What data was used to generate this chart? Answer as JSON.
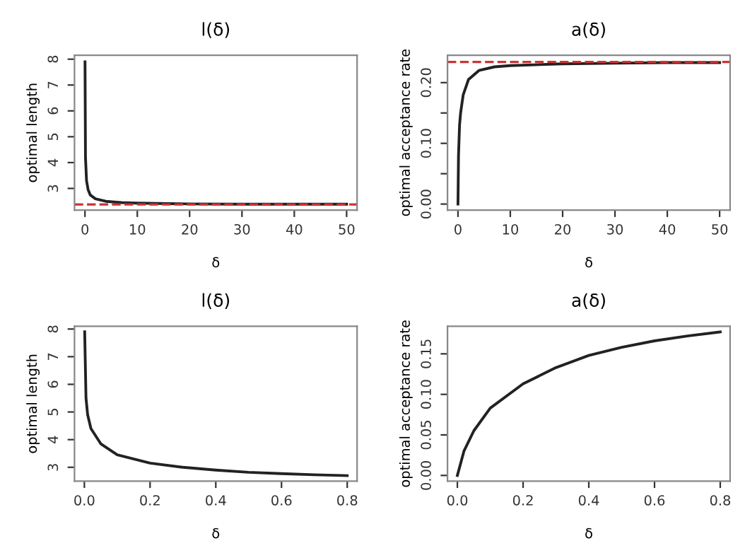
{
  "chart_data": [
    {
      "type": "line",
      "title": "l(δ)",
      "xlabel": "δ",
      "ylabel": "optimal length",
      "x": [
        0.01,
        0.1,
        0.3,
        0.6,
        1,
        2,
        4,
        7,
        10,
        20,
        30,
        40,
        50
      ],
      "series": [
        {
          "color": "#222222",
          "values": [
            7.9,
            4.2,
            3.3,
            2.95,
            2.75,
            2.6,
            2.5,
            2.45,
            2.43,
            2.4,
            2.39,
            2.39,
            2.39
          ]
        }
      ],
      "xlim": [
        -2,
        52
      ],
      "ylim": [
        2.16,
        8.15
      ],
      "xticks": [
        0,
        10,
        20,
        30,
        40,
        50
      ],
      "yticks": [
        3,
        4,
        5,
        6,
        7,
        8
      ],
      "ref_lines": [
        {
          "axis": "y",
          "value": 2.38,
          "color": "#cc3333",
          "line_style": "dashed"
        }
      ],
      "grid": false,
      "legend": false
    },
    {
      "type": "line",
      "title": "a(δ)",
      "xlabel": "δ",
      "ylabel": "optimal acceptance rate",
      "x": [
        0.0,
        0.1,
        0.3,
        0.5,
        1,
        2,
        4,
        7,
        10,
        20,
        30,
        40,
        50
      ],
      "series": [
        {
          "color": "#222222",
          "values": [
            0.0,
            0.08,
            0.13,
            0.15,
            0.18,
            0.205,
            0.22,
            0.226,
            0.228,
            0.231,
            0.232,
            0.233,
            0.233
          ]
        }
      ],
      "xlim": [
        -2,
        52
      ],
      "ylim": [
        -0.01,
        0.245
      ],
      "xticks": [
        0,
        10,
        20,
        30,
        40,
        50
      ],
      "yticks": [
        {
          "value": 0.0,
          "label": "0.00"
        },
        {
          "value": 0.05,
          "label": null
        },
        {
          "value": 0.1,
          "label": "0.10"
        },
        {
          "value": 0.15,
          "label": null
        },
        {
          "value": 0.2,
          "label": "0.20"
        }
      ],
      "ref_lines": [
        {
          "axis": "y",
          "value": 0.234,
          "color": "#cc3333",
          "line_style": "dashed"
        }
      ],
      "grid": false,
      "legend": false
    },
    {
      "type": "line",
      "title": "l(δ)",
      "xlabel": "δ",
      "ylabel": "optimal length",
      "x": [
        0.001,
        0.005,
        0.01,
        0.02,
        0.05,
        0.1,
        0.2,
        0.3,
        0.4,
        0.5,
        0.6,
        0.7,
        0.8
      ],
      "series": [
        {
          "color": "#222222",
          "values": [
            7.9,
            5.5,
            4.9,
            4.4,
            3.85,
            3.45,
            3.15,
            3.0,
            2.9,
            2.82,
            2.77,
            2.73,
            2.7
          ]
        }
      ],
      "xlim": [
        -0.03,
        0.83
      ],
      "ylim": [
        2.5,
        8.1
      ],
      "xticks": [
        {
          "value": 0.0,
          "label": "0.0"
        },
        0.2,
        0.4,
        0.6,
        0.8
      ],
      "yticks": [
        3,
        4,
        5,
        6,
        7,
        8
      ],
      "grid": false,
      "legend": false
    },
    {
      "type": "line",
      "title": "a(δ)",
      "xlabel": "δ",
      "ylabel": "optimal acceptance rate",
      "x": [
        0.0,
        0.02,
        0.05,
        0.1,
        0.2,
        0.3,
        0.4,
        0.5,
        0.6,
        0.7,
        0.8
      ],
      "series": [
        {
          "color": "#222222",
          "values": [
            0.0,
            0.03,
            0.055,
            0.083,
            0.113,
            0.133,
            0.148,
            0.158,
            0.166,
            0.172,
            0.177
          ]
        }
      ],
      "xlim": [
        -0.03,
        0.83
      ],
      "ylim": [
        -0.007,
        0.184
      ],
      "xticks": [
        {
          "value": 0.0,
          "label": "0.0"
        },
        0.2,
        0.4,
        0.6,
        0.8
      ],
      "yticks": [
        {
          "value": 0.0,
          "label": "0.00"
        },
        {
          "value": 0.05,
          "label": "0.05"
        },
        {
          "value": 0.1,
          "label": "0.10"
        },
        {
          "value": 0.15,
          "label": "0.15"
        }
      ],
      "grid": false,
      "legend": false
    }
  ]
}
